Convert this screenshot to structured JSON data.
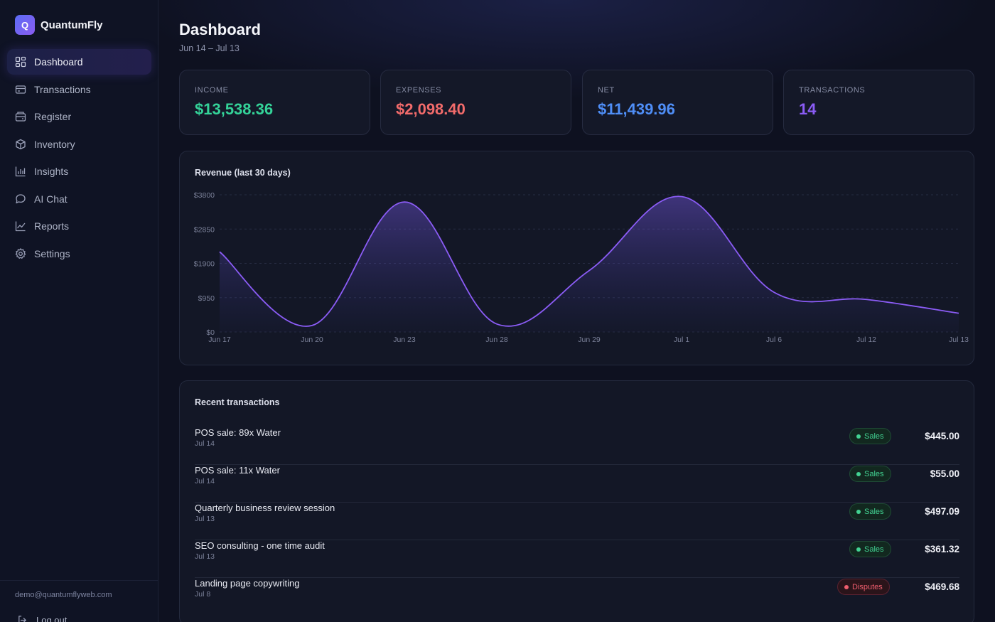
{
  "app": {
    "logo_letter": "Q",
    "name": "QuantumFly"
  },
  "sidebar": {
    "items": [
      {
        "label": "Dashboard",
        "icon": "dashboard-icon",
        "active": true
      },
      {
        "label": "Transactions",
        "icon": "transactions-icon"
      },
      {
        "label": "Register",
        "icon": "register-icon"
      },
      {
        "label": "Inventory",
        "icon": "inventory-icon"
      },
      {
        "label": "Insights",
        "icon": "insights-icon"
      },
      {
        "label": "AI Chat",
        "icon": "chat-icon"
      },
      {
        "label": "Reports",
        "icon": "reports-icon"
      },
      {
        "label": "Settings",
        "icon": "settings-icon"
      }
    ],
    "user_email": "demo@quantumflyweb.com",
    "logout_label": "Log out"
  },
  "header": {
    "title": "Dashboard",
    "range": "Jun 14 – Jul 13"
  },
  "stats": [
    {
      "label": "INCOME",
      "value": "$13,538.36",
      "color": "#34d399"
    },
    {
      "label": "EXPENSES",
      "value": "$2,098.40",
      "color": "#f26b6b"
    },
    {
      "label": "NET",
      "value": "$11,439.96",
      "color": "#4f8ef7"
    },
    {
      "label": "TRANSACTIONS",
      "value": "14",
      "color": "#8b5cf6"
    }
  ],
  "chart_title": "Revenue (last 30 days)",
  "chart_data": {
    "type": "area",
    "title": "Revenue (last 30 days)",
    "x": [
      "Jun 17",
      "Jun 20",
      "Jun 23",
      "Jun 28",
      "Jun 29",
      "Jul 1",
      "Jul 6",
      "Jul 12",
      "Jul 13"
    ],
    "series": [
      {
        "values": [
          2220,
          180,
          3600,
          220,
          1700,
          3750,
          1100,
          900,
          520
        ]
      }
    ],
    "y_ticks": [
      "$0",
      "$950",
      "$1900",
      "$2850",
      "$3800"
    ],
    "ylim": [
      0,
      3800
    ],
    "color": "#8b5cf6",
    "grid": true,
    "legend": "none"
  },
  "transactions": {
    "title": "Recent transactions",
    "rows": [
      {
        "description": "POS sale: 89x Water",
        "date": "Jul 14",
        "category": "Sales",
        "amount": "$445.00"
      },
      {
        "description": "POS sale: 11x Water",
        "date": "Jul 14",
        "category": "Sales",
        "amount": "$55.00"
      },
      {
        "description": "Quarterly business review session",
        "date": "Jul 13",
        "category": "Sales",
        "amount": "$497.09"
      },
      {
        "description": "SEO consulting - one time audit",
        "date": "Jul 13",
        "category": "Sales",
        "amount": "$361.32"
      },
      {
        "description": "Landing page copywriting",
        "date": "Jul 8",
        "category": "Disputes",
        "amount": "$469.68"
      }
    ]
  }
}
